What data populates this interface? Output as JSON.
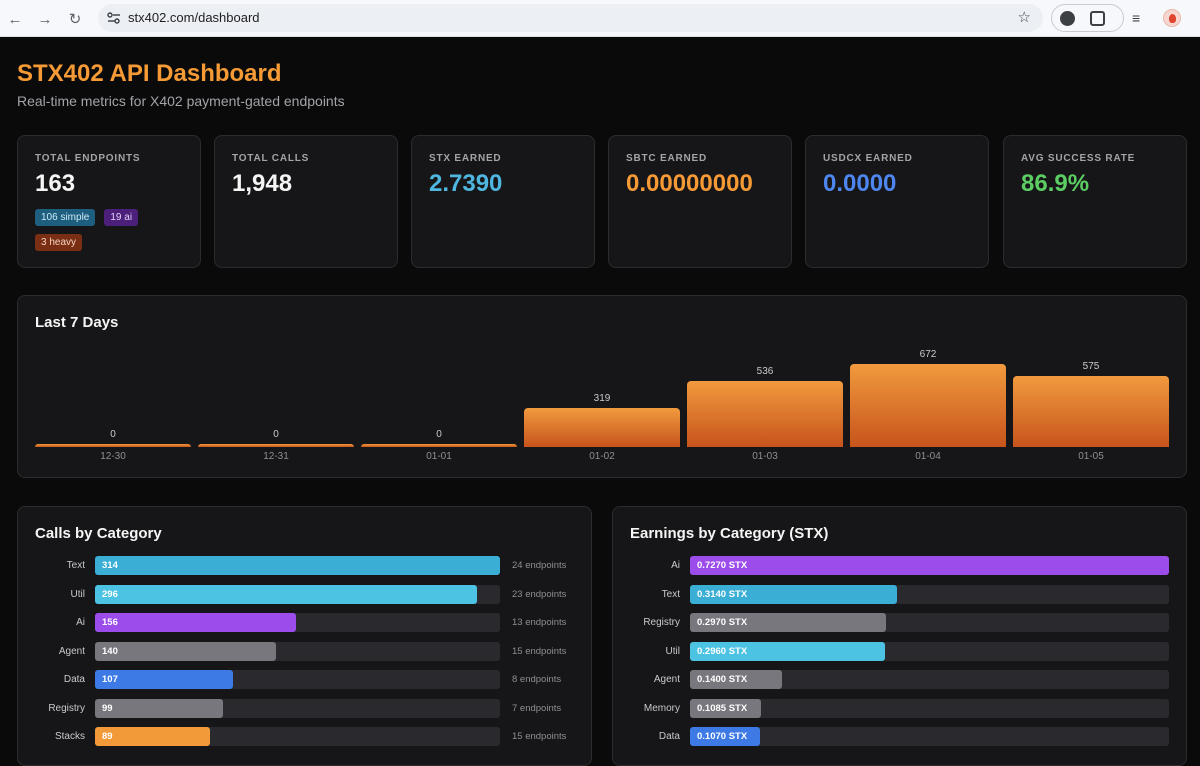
{
  "browser": {
    "url": "stx402.com/dashboard"
  },
  "header": {
    "title": "STX402 API Dashboard",
    "subtitle": "Real-time metrics for X402 payment-gated endpoints"
  },
  "stats": [
    {
      "label": "TOTAL ENDPOINTS",
      "value": "163",
      "color": "#f5f5f5"
    },
    {
      "label": "TOTAL CALLS",
      "value": "1,948",
      "color": "#f5f5f5"
    },
    {
      "label": "STX EARNED",
      "value": "2.7390",
      "color": "#4fb6e0"
    },
    {
      "label": "SBTC EARNED",
      "value": "0.00000000",
      "color": "#f59a34"
    },
    {
      "label": "USDCX EARNED",
      "value": "0.0000",
      "color": "#4d86ee"
    },
    {
      "label": "AVG SUCCESS RATE",
      "value": "86.9%",
      "color": "#5ccd63"
    }
  ],
  "endpoint_badges": {
    "simple": "106 simple",
    "ai": "19 ai",
    "heavy": "3 heavy"
  },
  "last7": {
    "title": "Last 7 Days",
    "chart_data": {
      "type": "bar",
      "categories": [
        "12-30",
        "12-31",
        "01-01",
        "01-02",
        "01-03",
        "01-04",
        "01-05"
      ],
      "values": [
        0,
        0,
        0,
        319,
        536,
        672,
        575
      ],
      "value_labels": [
        "0",
        "0",
        "0",
        "319",
        "536",
        "672",
        "575"
      ],
      "ylim": [
        0,
        672
      ]
    }
  },
  "calls_by_category": {
    "title": "Calls by Category",
    "chart_data": {
      "type": "bar",
      "orientation": "horizontal",
      "categories": [
        "Text",
        "Util",
        "Ai",
        "Agent",
        "Data",
        "Registry",
        "Stacks"
      ],
      "values": [
        314,
        296,
        156,
        140,
        107,
        99,
        89
      ],
      "value_labels": [
        "314",
        "296",
        "156",
        "140",
        "107",
        "99",
        "89"
      ],
      "endpoints": [
        "24 endpoints",
        "23 endpoints",
        "13 endpoints",
        "15 endpoints",
        "8 endpoints",
        "7 endpoints",
        "15 endpoints"
      ],
      "colors": [
        "#3aaed4",
        "#4cc3e3",
        "#9d4cec",
        "#77777d",
        "#3d7ae6",
        "#77777d",
        "#f29a3a"
      ],
      "xlim": [
        0,
        314
      ]
    }
  },
  "earnings_by_category": {
    "title": "Earnings by Category (STX)",
    "chart_data": {
      "type": "bar",
      "orientation": "horizontal",
      "categories": [
        "Ai",
        "Text",
        "Registry",
        "Util",
        "Agent",
        "Memory",
        "Data"
      ],
      "values": [
        0.727,
        0.314,
        0.297,
        0.296,
        0.14,
        0.1085,
        0.107
      ],
      "value_labels": [
        "0.7270 STX",
        "0.3140 STX",
        "0.2970 STX",
        "0.2960 STX",
        "0.1400 STX",
        "0.1085 STX",
        "0.1070 STX"
      ],
      "colors": [
        "#9d4cec",
        "#3aaed4",
        "#77777d",
        "#4cc3e3",
        "#77777d",
        "#77777d",
        "#3d7ae6"
      ],
      "xlim": [
        0,
        0.727
      ]
    }
  }
}
